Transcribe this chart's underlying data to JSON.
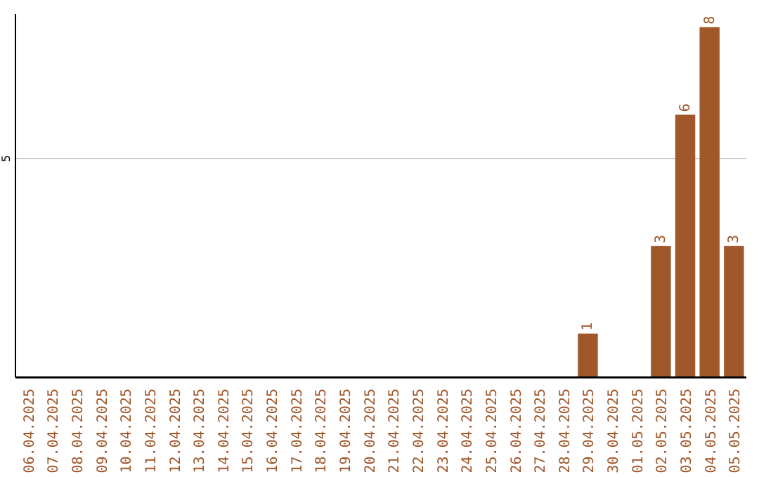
{
  "chart_data": {
    "type": "bar",
    "categories": [
      "06.04.2025",
      "07.04.2025",
      "08.04.2025",
      "09.04.2025",
      "10.04.2025",
      "11.04.2025",
      "12.04.2025",
      "13.04.2025",
      "14.04.2025",
      "15.04.2025",
      "16.04.2025",
      "17.04.2025",
      "18.04.2025",
      "19.04.2025",
      "20.04.2025",
      "21.04.2025",
      "22.04.2025",
      "23.04.2025",
      "24.04.2025",
      "25.04.2025",
      "26.04.2025",
      "27.04.2025",
      "28.04.2025",
      "29.04.2025",
      "30.04.2025",
      "01.05.2025",
      "02.05.2025",
      "03.05.2025",
      "04.05.2025",
      "05.05.2025"
    ],
    "values": [
      null,
      null,
      null,
      null,
      null,
      null,
      null,
      null,
      null,
      null,
      null,
      null,
      null,
      null,
      null,
      null,
      null,
      null,
      null,
      null,
      null,
      null,
      null,
      1,
      null,
      null,
      3,
      6,
      8,
      3
    ],
    "data_labels": true,
    "color": "#a0572a",
    "ylim": [
      0,
      8.3
    ],
    "ref_lines": [
      {
        "axis": "y",
        "value": 5,
        "label": "5",
        "color": "#cccccc"
      }
    ]
  }
}
